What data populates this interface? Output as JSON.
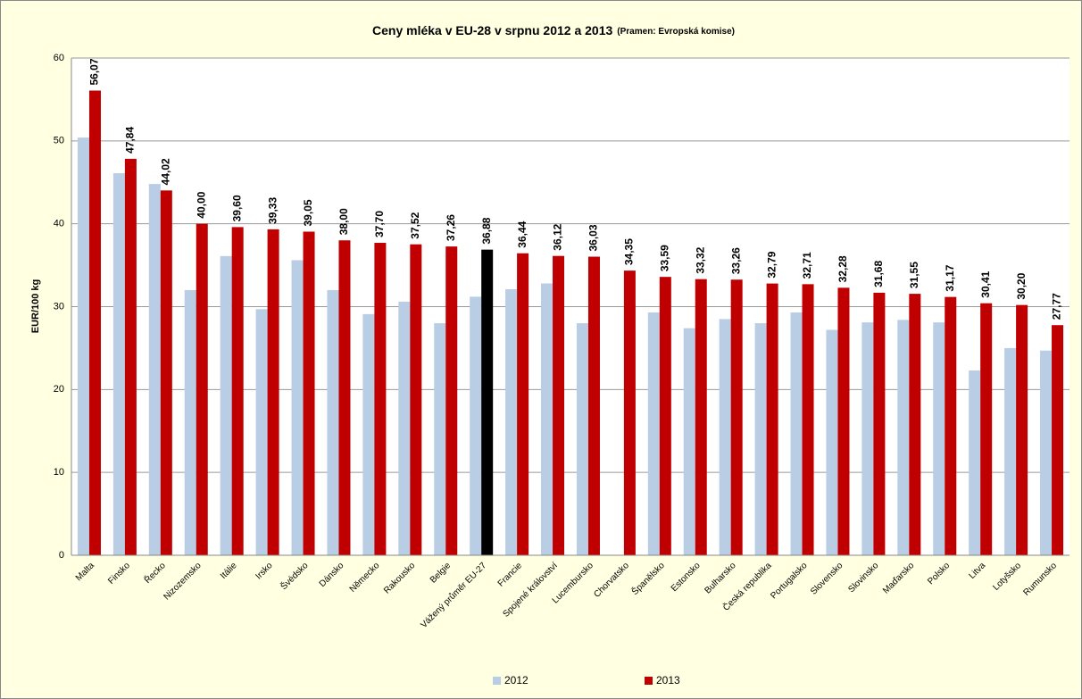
{
  "chart_data": {
    "type": "bar",
    "title": "Ceny mléka v EU-28 v srpnu 2012 a 2013",
    "subtitle": "(Pramen: Evropská komise)",
    "y_label": "EUR/100 kg",
    "categories": [
      "Malta",
      "Finsko",
      "Řecko",
      "Nizozemsko",
      "Itálie",
      "Irsko",
      "Švédsko",
      "Dánsko",
      "Německo",
      "Rakousko",
      "Belgie",
      "Vážený průměr EU-27",
      "Francie",
      "Spojené království",
      "Lucembursko",
      "Chorvatsko",
      "Španělsko",
      "Estonsko",
      "Bulharsko",
      "Česká republika",
      "Portugalsko",
      "Slovensko",
      "Slovinsko",
      "Maďarsko",
      "Polsko",
      "Litva",
      "Lotyšsko",
      "Rumunsko"
    ],
    "series": [
      {
        "name": "2012",
        "color": "#b9cde5",
        "values": [
          50.4,
          46.1,
          44.8,
          32.0,
          36.1,
          29.7,
          35.6,
          32.0,
          29.1,
          30.6,
          28.0,
          31.2,
          32.1,
          32.8,
          28.0,
          null,
          29.3,
          27.4,
          28.5,
          28.0,
          29.3,
          27.2,
          28.1,
          28.4,
          28.1,
          22.3,
          25.0,
          24.7
        ]
      },
      {
        "name": "2013",
        "color": "#c00000",
        "colors": [
          "#c00000",
          "#c00000",
          "#c00000",
          "#c00000",
          "#c00000",
          "#c00000",
          "#c00000",
          "#c00000",
          "#c00000",
          "#c00000",
          "#c00000",
          "#000000",
          "#c00000",
          "#c00000",
          "#c00000",
          "#c00000",
          "#c00000",
          "#c00000",
          "#c00000",
          "#c00000",
          "#c00000",
          "#c00000",
          "#c00000",
          "#c00000",
          "#c00000",
          "#c00000",
          "#c00000",
          "#c00000"
        ],
        "values": [
          56.07,
          47.84,
          44.02,
          40.0,
          39.6,
          39.33,
          39.05,
          38.0,
          37.7,
          37.52,
          37.26,
          36.88,
          36.44,
          36.12,
          36.03,
          34.35,
          33.59,
          33.32,
          33.26,
          32.79,
          32.71,
          32.28,
          31.68,
          31.55,
          31.17,
          30.41,
          30.2,
          27.77
        ],
        "value_labels": [
          "56,07",
          "47,84",
          "44,02",
          "40,00",
          "39,60",
          "39,33",
          "39,05",
          "38,00",
          "37,70",
          "37,52",
          "37,26",
          "36,88",
          "36,44",
          "36,12",
          "36,03",
          "34,35",
          "33,59",
          "33,32",
          "33,26",
          "32,79",
          "32,71",
          "32,28",
          "31,68",
          "31,55",
          "31,17",
          "30,41",
          "30,20",
          "27,77"
        ]
      }
    ],
    "ylim": [
      0,
      60
    ],
    "yticks": [
      0,
      10,
      20,
      30,
      40,
      50,
      60
    ],
    "grid": true,
    "legend": "bottom"
  }
}
